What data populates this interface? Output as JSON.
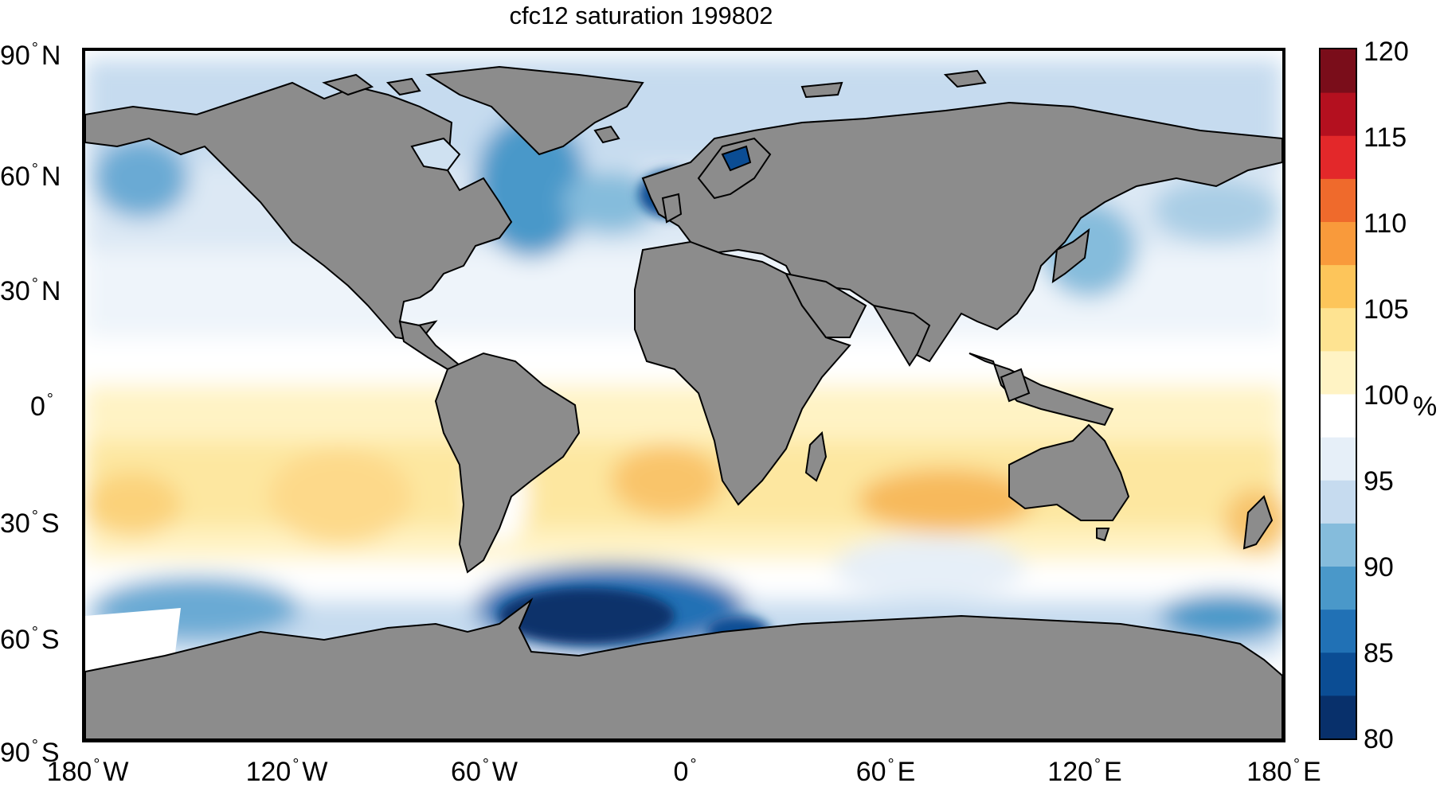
{
  "title": "cfc12 saturation 199802",
  "lat_labels": [
    "90",
    "N",
    "60",
    "N",
    "30",
    "N",
    "0",
    "",
    "30",
    "S",
    "60",
    "S",
    "90",
    "S"
  ],
  "lat_ticks": [
    {
      "value": "90",
      "hemi": "N"
    },
    {
      "value": "60",
      "hemi": "N"
    },
    {
      "value": "30",
      "hemi": "N"
    },
    {
      "value": "0",
      "hemi": ""
    },
    {
      "value": "30",
      "hemi": "S"
    },
    {
      "value": "60",
      "hemi": "S"
    },
    {
      "value": "90",
      "hemi": "S"
    }
  ],
  "lon_ticks": [
    {
      "value": "180",
      "hemi": "W"
    },
    {
      "value": "120",
      "hemi": "W"
    },
    {
      "value": "60",
      "hemi": "W"
    },
    {
      "value": "0",
      "hemi": ""
    },
    {
      "value": "60",
      "hemi": "E"
    },
    {
      "value": "120",
      "hemi": "E"
    },
    {
      "value": "180",
      "hemi": "E"
    }
  ],
  "colorbar": {
    "ticks": [
      "120",
      "115",
      "110",
      "105",
      "100",
      "95",
      "90",
      "85",
      "80"
    ],
    "min": 80,
    "max": 120,
    "unit": "%",
    "colors_low_to_high": [
      "#08306b",
      "#0b4d94",
      "#2171b5",
      "#4a98c9",
      "#85bcdc",
      "#c6dbef",
      "#e6eff8",
      "#ffffff",
      "#fff3c4",
      "#fee391",
      "#fdc55a",
      "#f99a3b",
      "#ef6a2c",
      "#e3282a",
      "#b4101f",
      "#7a0d1a"
    ]
  },
  "colors": {
    "land": "#8c8c8c",
    "ocean_neutral": "#ffffff",
    "subsaturated": "#c6dbef",
    "strongly_subsaturated": "#0b4d94",
    "supersaturated": "#fde7a0"
  }
}
